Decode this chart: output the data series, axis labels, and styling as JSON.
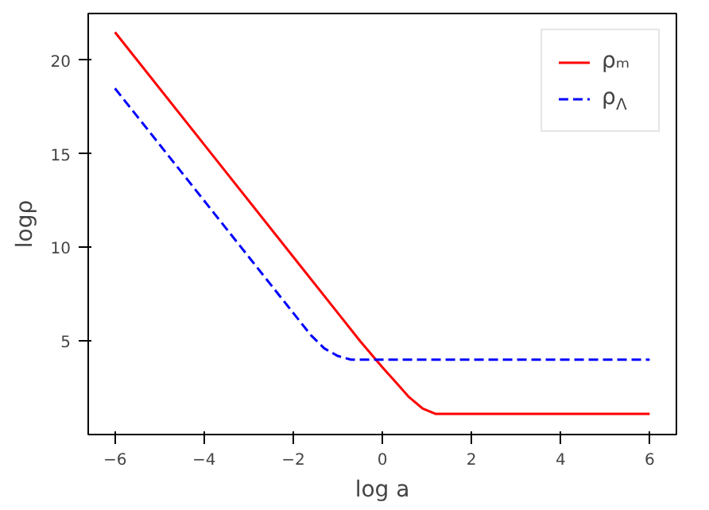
{
  "chart_data": {
    "type": "line",
    "xlabel": "log a",
    "ylabel": "logρ",
    "xlim": [
      -6.6,
      6.6
    ],
    "ylim": [
      0,
      22.5
    ],
    "xticks": [
      -6,
      -4,
      -2,
      0,
      2,
      4,
      6
    ],
    "yticks": [
      5,
      10,
      15,
      20
    ],
    "grid": false,
    "legend": "top right",
    "series": [
      {
        "name": "ρₘ",
        "color": "#ff0000",
        "line_style": "solid",
        "x": [
          -6,
          -4,
          -2,
          -1,
          -0.5,
          0,
          0.3,
          0.6,
          0.9,
          1.2,
          1.5,
          2,
          4,
          6
        ],
        "values": [
          21.5,
          15.5,
          9.5,
          6.5,
          5.0,
          3.6,
          2.8,
          2.0,
          1.4,
          1.1,
          1.1,
          1.1,
          1.1,
          1.1
        ]
      },
      {
        "name": "ρ$_{Λ}$",
        "color": "#0000ff",
        "line_style": "dashed",
        "x": [
          -6,
          -4,
          -2,
          -1.6,
          -1.3,
          -1.0,
          -0.7,
          0,
          6
        ],
        "values": [
          18.5,
          12.5,
          6.5,
          5.3,
          4.6,
          4.2,
          4.0,
          4,
          4
        ]
      }
    ]
  }
}
